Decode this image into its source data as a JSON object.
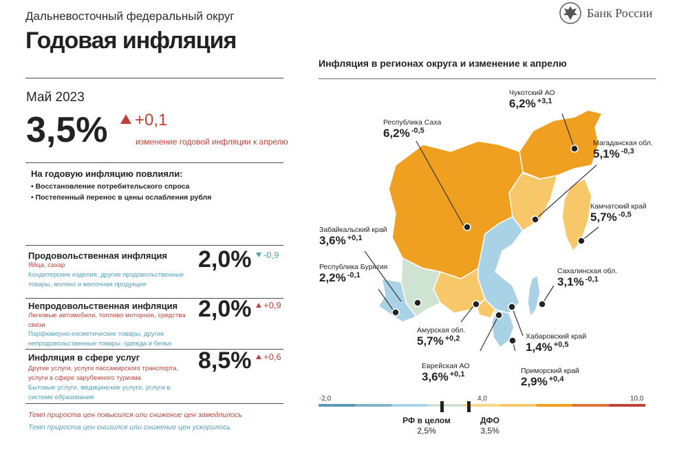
{
  "header": {
    "subtitle": "Дальневосточный федеральный округ",
    "title": "Годовая инфляция",
    "logo_text": "Банк России",
    "logo_icon": "eagle-emblem-icon"
  },
  "summary": {
    "period": "Май 2023",
    "value": "3,5%",
    "change": "+0,1",
    "change_note": "изменение годовой инфляции к апрелю",
    "factors_title": "На годовую инфляцию повлияли:",
    "factors": [
      "• Восстановление потребительского спроса",
      "• Постепенный перенос в цены ослабления рубля"
    ]
  },
  "categories": [
    {
      "title": "Продовольственная инфляция",
      "value": "2,0%",
      "change": "-0,9",
      "direction": "down",
      "red_text": "Яйца, сахар",
      "blue_text": "Кондитерские изделия, другие продовольственные товары, молоко и молочная продукция"
    },
    {
      "title": "Непродовольственная инфляция",
      "value": "2,0%",
      "change": "+0,9",
      "direction": "up",
      "red_text": "Легковые автомобили, топливо моторное, средства связи",
      "blue_text": "Парфюмерно-косметические товары, другие непродовольственные товары, одежда и белье"
    },
    {
      "title": "Инфляция в сфере услуг",
      "value": "8,5%",
      "change": "+0,6",
      "direction": "up",
      "red_text": "Другие услуги, услуги пассажирского транспорта, услуги в сфере зарубежного туризма",
      "blue_text": "Бытовые услуги, медицинские услуги, услуги в системе образования"
    }
  ],
  "legend": {
    "red": "Темп прироста цен повысился или снижение цен замедлилось",
    "blue": "Темп прироста цен снизился или снижение цен ускорилось"
  },
  "map": {
    "title": "Инфляция в регионах округа и изменение к апрелю",
    "regions": [
      {
        "name": "Чукотский АО",
        "value": "6,2%",
        "change": "+3,1"
      },
      {
        "name": "Республика Саха",
        "value": "6,2%",
        "change": "-0,5"
      },
      {
        "name": "Магаданская обл.",
        "value": "5,1%",
        "change": "-0,3"
      },
      {
        "name": "Забайкальский край",
        "value": "3,6%",
        "change": "+0,1"
      },
      {
        "name": "Камчатский край",
        "value": "5,7%",
        "change": "-0,5"
      },
      {
        "name": "Республика Бурятия",
        "value": "2,2%",
        "change": "-0,1"
      },
      {
        "name": "Сахалинская обл.",
        "value": "3,1%",
        "change": "-0,1"
      },
      {
        "name": "Амурская обл.",
        "value": "5,7%",
        "change": "+0,2"
      },
      {
        "name": "Хабаровский край",
        "value": "1,4%",
        "change": "+0,5"
      },
      {
        "name": "Еврейская АО",
        "value": "3,6%",
        "change": "+0,1"
      },
      {
        "name": "Приморский край",
        "value": "2,9%",
        "change": "+0,4"
      }
    ],
    "colors": {
      "high": "#f0a020",
      "mid": "#f7c86a",
      "low_blue": "#a9d2e6",
      "green": "#cfe3d2"
    },
    "scale": {
      "min_label": "-2,0",
      "mid_label": "4,0",
      "max_label": "10,0",
      "markers": [
        {
          "label": "РФ в целом",
          "value": "2,5%"
        },
        {
          "label": "ДФО",
          "value": "3,5%"
        }
      ]
    }
  }
}
